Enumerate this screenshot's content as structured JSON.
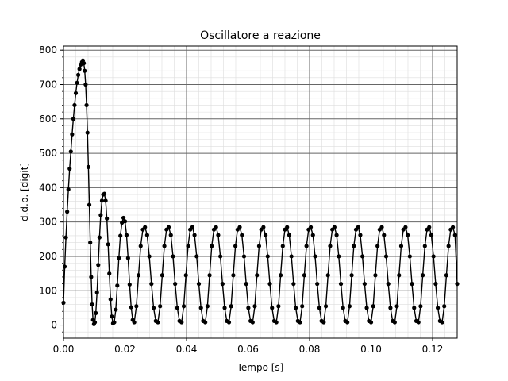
{
  "chart_data": {
    "type": "scatter",
    "title": "Oscillatore a reazione",
    "xlabel": "Tempo [s]",
    "ylabel": "d.d.p. [digit]",
    "xlim": [
      0.0,
      0.128
    ],
    "ylim": [
      -38,
      812
    ],
    "xticks": [
      0.0,
      0.02,
      0.04,
      0.06,
      0.08,
      0.1,
      0.12
    ],
    "xtick_labels": [
      "0.00",
      "0.02",
      "0.04",
      "0.06",
      "0.08",
      "0.10",
      "0.12"
    ],
    "yticks": [
      0,
      100,
      200,
      300,
      400,
      500,
      600,
      700,
      800
    ],
    "ytick_labels": [
      "0",
      "100",
      "200",
      "300",
      "400",
      "500",
      "600",
      "700",
      "800"
    ],
    "grid": {
      "major": true,
      "minor": true
    },
    "marker": {
      "shape": "circle",
      "color": "#000000",
      "connected": true
    },
    "series": [
      {
        "points": [
          [
            0.0,
            65
          ],
          [
            0.0004,
            170
          ],
          [
            0.0008,
            255
          ],
          [
            0.0012,
            330
          ],
          [
            0.0016,
            395
          ],
          [
            0.002,
            455
          ],
          [
            0.0024,
            505
          ],
          [
            0.0028,
            555
          ],
          [
            0.0032,
            600
          ],
          [
            0.0036,
            640
          ],
          [
            0.004,
            675
          ],
          [
            0.0044,
            705
          ],
          [
            0.0048,
            728
          ],
          [
            0.0052,
            745
          ],
          [
            0.0056,
            758
          ],
          [
            0.006,
            765
          ],
          [
            0.0063,
            770
          ],
          [
            0.0066,
            762
          ],
          [
            0.0069,
            740
          ],
          [
            0.0072,
            700
          ],
          [
            0.0075,
            640
          ],
          [
            0.0078,
            560
          ],
          [
            0.0081,
            460
          ],
          [
            0.0084,
            350
          ],
          [
            0.0087,
            240
          ],
          [
            0.009,
            140
          ],
          [
            0.0093,
            60
          ],
          [
            0.0096,
            15
          ],
          [
            0.0099,
            3
          ],
          [
            0.0102,
            8
          ],
          [
            0.0105,
            35
          ],
          [
            0.0109,
            95
          ],
          [
            0.0113,
            175
          ],
          [
            0.0117,
            255
          ],
          [
            0.0121,
            320
          ],
          [
            0.0125,
            362
          ],
          [
            0.0129,
            380
          ],
          [
            0.0133,
            382
          ],
          [
            0.0137,
            362
          ],
          [
            0.0141,
            310
          ],
          [
            0.0145,
            235
          ],
          [
            0.0149,
            150
          ],
          [
            0.0153,
            75
          ],
          [
            0.0157,
            25
          ],
          [
            0.0161,
            5
          ],
          [
            0.0165,
            8
          ],
          [
            0.017,
            45
          ],
          [
            0.0175,
            115
          ],
          [
            0.018,
            195
          ],
          [
            0.0185,
            260
          ],
          [
            0.019,
            298
          ],
          [
            0.0195,
            312
          ],
          [
            0.02,
            302
          ],
          [
            0.0205,
            262
          ],
          [
            0.021,
            195
          ],
          [
            0.0215,
            118
          ],
          [
            0.022,
            52
          ],
          [
            0.0225,
            15
          ],
          [
            0.023,
            8
          ],
          [
            0.0237,
            55
          ],
          [
            0.0244,
            145
          ],
          [
            0.0251,
            230
          ],
          [
            0.0258,
            278
          ],
          [
            0.0265,
            285
          ],
          [
            0.0272,
            262
          ],
          [
            0.0279,
            200
          ],
          [
            0.0286,
            120
          ],
          [
            0.0293,
            50
          ],
          [
            0.03,
            12
          ],
          [
            0.0307,
            8
          ],
          [
            0.0314,
            55
          ],
          [
            0.0321,
            145
          ],
          [
            0.0328,
            230
          ],
          [
            0.0335,
            278
          ],
          [
            0.0342,
            285
          ],
          [
            0.0349,
            262
          ],
          [
            0.0356,
            200
          ],
          [
            0.0363,
            120
          ],
          [
            0.037,
            50
          ],
          [
            0.0377,
            12
          ],
          [
            0.0384,
            8
          ],
          [
            0.0391,
            55
          ],
          [
            0.0398,
            145
          ],
          [
            0.0405,
            230
          ],
          [
            0.0412,
            278
          ],
          [
            0.0419,
            285
          ],
          [
            0.0426,
            262
          ],
          [
            0.0433,
            200
          ],
          [
            0.044,
            120
          ],
          [
            0.0447,
            50
          ],
          [
            0.0454,
            12
          ],
          [
            0.0461,
            8
          ],
          [
            0.0468,
            55
          ],
          [
            0.0475,
            145
          ],
          [
            0.0482,
            230
          ],
          [
            0.0489,
            278
          ],
          [
            0.0496,
            285
          ],
          [
            0.0503,
            262
          ],
          [
            0.051,
            200
          ],
          [
            0.0517,
            120
          ],
          [
            0.0524,
            50
          ],
          [
            0.0531,
            12
          ],
          [
            0.0538,
            8
          ],
          [
            0.0545,
            55
          ],
          [
            0.0552,
            145
          ],
          [
            0.0559,
            230
          ],
          [
            0.0566,
            278
          ],
          [
            0.0573,
            285
          ],
          [
            0.058,
            262
          ],
          [
            0.0587,
            200
          ],
          [
            0.0594,
            120
          ],
          [
            0.0601,
            50
          ],
          [
            0.0608,
            12
          ],
          [
            0.0615,
            8
          ],
          [
            0.0622,
            55
          ],
          [
            0.0629,
            145
          ],
          [
            0.0636,
            230
          ],
          [
            0.0643,
            278
          ],
          [
            0.065,
            285
          ],
          [
            0.0657,
            262
          ],
          [
            0.0664,
            200
          ],
          [
            0.0671,
            120
          ],
          [
            0.0678,
            50
          ],
          [
            0.0685,
            12
          ],
          [
            0.0692,
            8
          ],
          [
            0.0699,
            55
          ],
          [
            0.0706,
            145
          ],
          [
            0.0713,
            230
          ],
          [
            0.072,
            278
          ],
          [
            0.0727,
            285
          ],
          [
            0.0734,
            262
          ],
          [
            0.0741,
            200
          ],
          [
            0.0748,
            120
          ],
          [
            0.0755,
            50
          ],
          [
            0.0762,
            12
          ],
          [
            0.0769,
            8
          ],
          [
            0.0776,
            55
          ],
          [
            0.0783,
            145
          ],
          [
            0.079,
            230
          ],
          [
            0.0797,
            278
          ],
          [
            0.0804,
            285
          ],
          [
            0.0811,
            262
          ],
          [
            0.0818,
            200
          ],
          [
            0.0825,
            120
          ],
          [
            0.0832,
            50
          ],
          [
            0.0839,
            12
          ],
          [
            0.0846,
            8
          ],
          [
            0.0853,
            55
          ],
          [
            0.086,
            145
          ],
          [
            0.0867,
            230
          ],
          [
            0.0874,
            278
          ],
          [
            0.0881,
            285
          ],
          [
            0.0888,
            262
          ],
          [
            0.0895,
            200
          ],
          [
            0.0902,
            120
          ],
          [
            0.0909,
            50
          ],
          [
            0.0916,
            12
          ],
          [
            0.0923,
            8
          ],
          [
            0.093,
            55
          ],
          [
            0.0937,
            145
          ],
          [
            0.0944,
            230
          ],
          [
            0.0951,
            278
          ],
          [
            0.0958,
            285
          ],
          [
            0.0965,
            262
          ],
          [
            0.0972,
            200
          ],
          [
            0.0979,
            120
          ],
          [
            0.0986,
            50
          ],
          [
            0.0993,
            12
          ],
          [
            0.1,
            8
          ],
          [
            0.1007,
            55
          ],
          [
            0.1014,
            145
          ],
          [
            0.1021,
            230
          ],
          [
            0.1028,
            278
          ],
          [
            0.1035,
            285
          ],
          [
            0.1042,
            262
          ],
          [
            0.1049,
            200
          ],
          [
            0.1056,
            120
          ],
          [
            0.1063,
            50
          ],
          [
            0.107,
            12
          ],
          [
            0.1077,
            8
          ],
          [
            0.1084,
            55
          ],
          [
            0.1091,
            145
          ],
          [
            0.1098,
            230
          ],
          [
            0.1105,
            278
          ],
          [
            0.1112,
            285
          ],
          [
            0.1119,
            262
          ],
          [
            0.1126,
            200
          ],
          [
            0.1133,
            120
          ],
          [
            0.114,
            50
          ],
          [
            0.1147,
            12
          ],
          [
            0.1154,
            8
          ],
          [
            0.1161,
            55
          ],
          [
            0.1168,
            145
          ],
          [
            0.1175,
            230
          ],
          [
            0.1182,
            278
          ],
          [
            0.1189,
            285
          ],
          [
            0.1196,
            262
          ],
          [
            0.1203,
            200
          ],
          [
            0.121,
            120
          ],
          [
            0.1217,
            50
          ],
          [
            0.1224,
            12
          ],
          [
            0.1231,
            8
          ],
          [
            0.1238,
            55
          ],
          [
            0.1245,
            145
          ],
          [
            0.1252,
            230
          ],
          [
            0.1259,
            278
          ],
          [
            0.1266,
            285
          ],
          [
            0.1273,
            262
          ],
          [
            0.128,
            120
          ]
        ]
      }
    ]
  }
}
